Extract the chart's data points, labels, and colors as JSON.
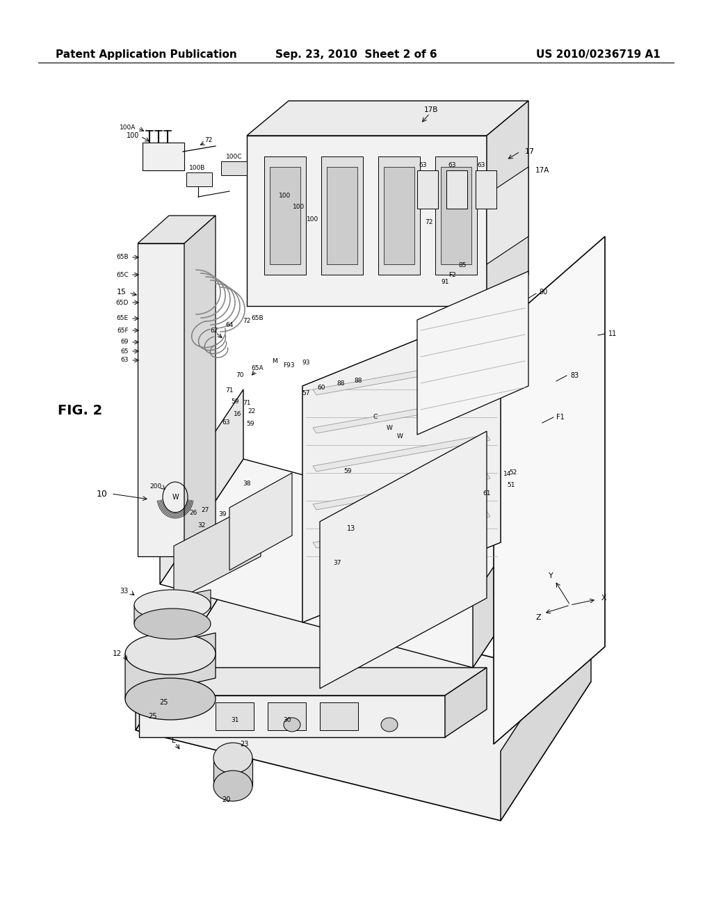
{
  "background_color": "#ffffff",
  "header_left": "Patent Application Publication",
  "header_mid": "Sep. 23, 2010  Sheet 2 of 6",
  "header_right": "US 2010/0236719 A1",
  "fig_label": "FIG. 2",
  "page_width": 10.24,
  "page_height": 13.2,
  "dpi": 100
}
